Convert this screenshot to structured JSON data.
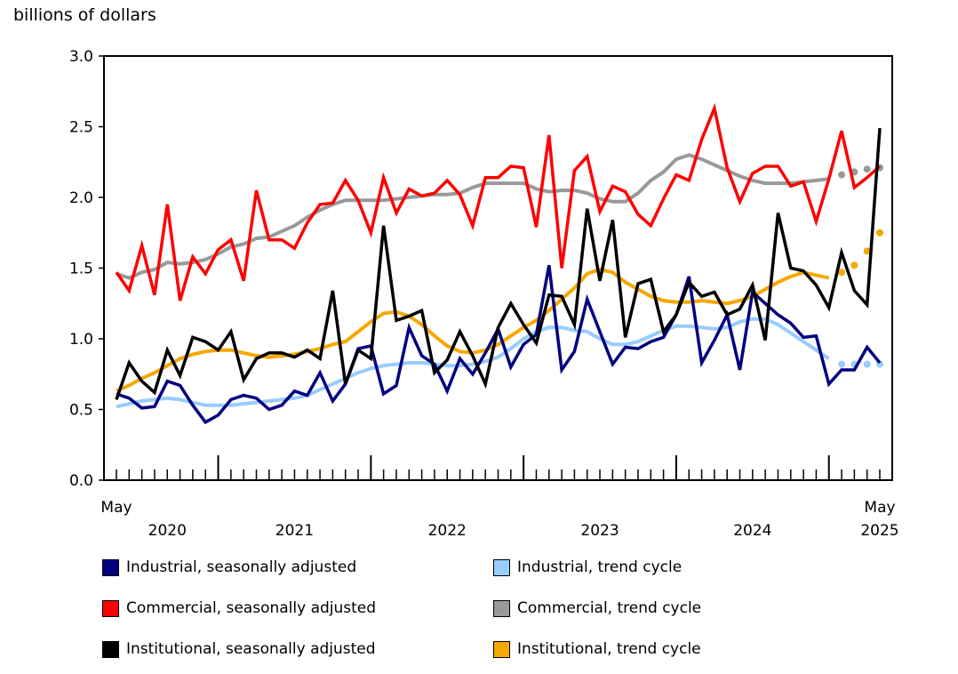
{
  "chart_data": {
    "type": "line",
    "ylabel": "billions of dollars",
    "ylim": [
      0,
      3.0
    ],
    "yticks": [
      "0.0",
      "0.5",
      "1.0",
      "1.5",
      "2.0",
      "2.5",
      "3.0"
    ],
    "x_start": "May 2020",
    "x_end": "May 2025",
    "xlabels": {
      "start_month": "May",
      "start_year": "2020",
      "years": [
        "2021",
        "2022",
        "2023",
        "2024"
      ],
      "end_month": "May",
      "end_year": "2025"
    },
    "grid": false,
    "legend_position": "bottom",
    "projected_points_note_count": 4,
    "series": [
      {
        "name": "Industrial, seasonally adjusted",
        "color": "#000080",
        "style": "line",
        "values": [
          0.61,
          0.58,
          0.51,
          0.52,
          0.7,
          0.67,
          0.53,
          0.41,
          0.46,
          0.57,
          0.6,
          0.58,
          0.5,
          0.53,
          0.63,
          0.6,
          0.76,
          0.56,
          0.68,
          0.93,
          0.95,
          0.61,
          0.67,
          1.08,
          0.88,
          0.82,
          0.63,
          0.86,
          0.75,
          0.9,
          1.07,
          0.8,
          0.96,
          1.03,
          1.52,
          0.78,
          0.91,
          1.28,
          1.05,
          0.82,
          0.94,
          0.93,
          0.98,
          1.01,
          1.17,
          1.44,
          0.83,
          0.99,
          1.17,
          0.78,
          1.33,
          1.25,
          1.17,
          1.11,
          1.01,
          1.02,
          0.68,
          0.78,
          0.78,
          0.94,
          0.83
        ]
      },
      {
        "name": "Industrial, trend cycle",
        "color": "#99ccff",
        "style": "trend",
        "values": [
          0.52,
          0.54,
          0.56,
          0.57,
          0.58,
          0.57,
          0.55,
          0.53,
          0.53,
          0.53,
          0.54,
          0.55,
          0.56,
          0.57,
          0.58,
          0.6,
          0.64,
          0.68,
          0.72,
          0.76,
          0.79,
          0.81,
          0.82,
          0.83,
          0.83,
          0.82,
          0.81,
          0.81,
          0.82,
          0.84,
          0.87,
          0.93,
          1.0,
          1.05,
          1.08,
          1.08,
          1.06,
          1.05,
          1.0,
          0.96,
          0.96,
          0.98,
          1.02,
          1.06,
          1.09,
          1.09,
          1.08,
          1.07,
          1.08,
          1.12,
          1.14,
          1.14,
          1.1,
          1.04,
          0.98,
          0.92,
          0.86,
          0.82,
          0.82,
          0.82,
          0.82
        ]
      },
      {
        "name": "Commercial, seasonally adjusted",
        "color": "#ff0000",
        "style": "line",
        "values": [
          1.47,
          1.34,
          1.66,
          1.31,
          1.95,
          1.27,
          1.58,
          1.46,
          1.63,
          1.7,
          1.41,
          2.05,
          1.7,
          1.7,
          1.64,
          1.82,
          1.95,
          1.96,
          2.12,
          1.98,
          1.75,
          2.14,
          1.89,
          2.06,
          2.01,
          2.03,
          2.12,
          2.02,
          1.8,
          2.14,
          2.14,
          2.22,
          2.21,
          1.79,
          2.44,
          1.5,
          2.19,
          2.29,
          1.9,
          2.08,
          2.04,
          1.88,
          1.8,
          1.99,
          2.16,
          2.12,
          2.41,
          2.63,
          2.21,
          1.97,
          2.17,
          2.22,
          2.22,
          2.08,
          2.11,
          1.83,
          2.13,
          2.47,
          2.07,
          2.14,
          2.22
        ]
      },
      {
        "name": "Commercial, trend cycle",
        "color": "#999999",
        "style": "trend",
        "values": [
          1.46,
          1.43,
          1.47,
          1.49,
          1.54,
          1.53,
          1.54,
          1.56,
          1.6,
          1.65,
          1.67,
          1.71,
          1.72,
          1.76,
          1.8,
          1.86,
          1.91,
          1.95,
          1.98,
          1.98,
          1.98,
          1.98,
          1.99,
          2.0,
          2.01,
          2.02,
          2.02,
          2.03,
          2.07,
          2.1,
          2.1,
          2.1,
          2.1,
          2.06,
          2.04,
          2.05,
          2.05,
          2.03,
          1.99,
          1.97,
          1.97,
          2.03,
          2.12,
          2.18,
          2.27,
          2.3,
          2.27,
          2.23,
          2.19,
          2.15,
          2.12,
          2.1,
          2.1,
          2.1,
          2.11,
          2.12,
          2.13,
          2.16,
          2.18,
          2.2,
          2.21
        ]
      },
      {
        "name": "Institutional, seasonally adjusted",
        "color": "#000000",
        "style": "line",
        "values": [
          0.57,
          0.83,
          0.7,
          0.62,
          0.92,
          0.74,
          1.01,
          0.98,
          0.92,
          1.05,
          0.71,
          0.86,
          0.9,
          0.9,
          0.87,
          0.92,
          0.86,
          1.34,
          0.68,
          0.92,
          0.86,
          1.8,
          1.13,
          1.16,
          1.2,
          0.76,
          0.85,
          1.05,
          0.88,
          0.68,
          1.08,
          1.25,
          1.1,
          0.97,
          1.31,
          1.3,
          1.1,
          1.92,
          1.41,
          1.84,
          1.01,
          1.39,
          1.42,
          1.05,
          1.17,
          1.4,
          1.3,
          1.33,
          1.17,
          1.21,
          1.38,
          0.99,
          1.89,
          1.5,
          1.48,
          1.38,
          1.22,
          1.61,
          1.34,
          1.24,
          2.49
        ]
      },
      {
        "name": "Institutional, trend cycle",
        "color": "#f5a800",
        "style": "trend",
        "values": [
          0.63,
          0.67,
          0.72,
          0.76,
          0.81,
          0.86,
          0.89,
          0.91,
          0.92,
          0.92,
          0.9,
          0.88,
          0.87,
          0.88,
          0.89,
          0.91,
          0.93,
          0.96,
          0.98,
          1.05,
          1.12,
          1.18,
          1.19,
          1.16,
          1.1,
          1.02,
          0.95,
          0.91,
          0.9,
          0.92,
          0.96,
          1.02,
          1.08,
          1.13,
          1.2,
          1.28,
          1.36,
          1.46,
          1.49,
          1.47,
          1.4,
          1.35,
          1.3,
          1.27,
          1.26,
          1.26,
          1.27,
          1.26,
          1.25,
          1.27,
          1.3,
          1.35,
          1.4,
          1.44,
          1.47,
          1.45,
          1.43,
          1.47,
          1.52,
          1.62,
          1.75
        ]
      }
    ]
  }
}
